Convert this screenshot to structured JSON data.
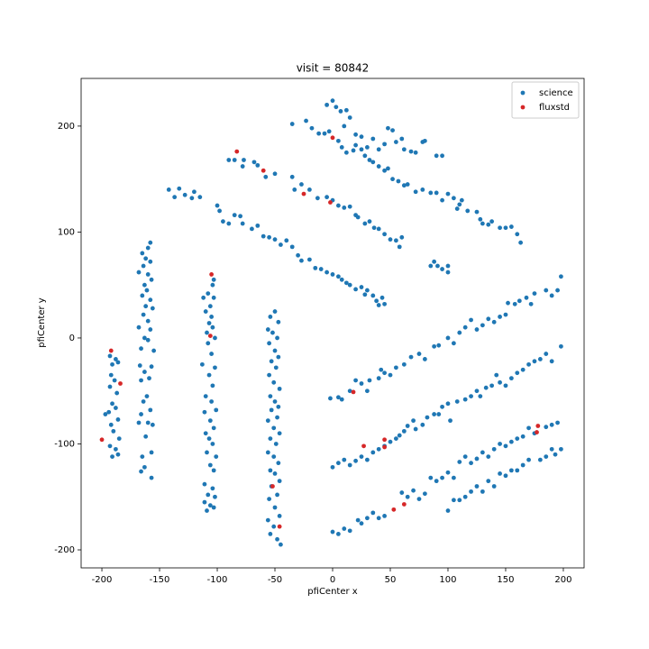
{
  "chart_data": {
    "type": "scatter",
    "title": "visit = 80842",
    "x_label": "pfiCenter x",
    "y_label": "pfiCenter y",
    "xlim": [
      -218,
      218
    ],
    "ylim": [
      -217,
      245
    ],
    "xticks": [
      -200,
      -150,
      -100,
      -50,
      0,
      50,
      100,
      150,
      200
    ],
    "yticks": [
      -200,
      -100,
      0,
      100,
      200
    ],
    "legend": "upper right",
    "grid": false,
    "series": [
      {
        "name": "science",
        "color": "#1f77b4",
        "x": [
          -193,
          -191,
          -188,
          -186,
          -192,
          -189,
          -193,
          -187,
          -191,
          -188,
          -194,
          -186,
          -192,
          -190,
          -185,
          -193,
          -188,
          -191,
          -186,
          -197,
          -158,
          -160,
          -165,
          -162,
          -158,
          -164,
          -160,
          -168,
          -157,
          -163,
          -161,
          -165,
          -158,
          -162,
          -156,
          -164,
          -160,
          -168,
          -158,
          -163,
          -160,
          -166,
          -155,
          -167,
          -157,
          -163,
          -159,
          -166,
          -161,
          -164,
          -158,
          -166,
          -160,
          -156,
          -168,
          -162,
          -157,
          -165,
          -163,
          -166,
          -157,
          -103,
          -104,
          -108,
          -103,
          -112,
          -106,
          -110,
          -105,
          -107,
          -104,
          -109,
          -102,
          -108,
          -113,
          -105,
          -102,
          -107,
          -104,
          -110,
          -105,
          -101,
          -111,
          -106,
          -103,
          -110,
          -107,
          -104,
          -109,
          -101,
          -106,
          -103,
          -111,
          -104,
          -108,
          -102,
          -111,
          -106,
          -109,
          -103,
          -50,
          -54,
          -47,
          -56,
          -52,
          -48,
          -55,
          -50,
          -47,
          -53,
          -49,
          -55,
          -51,
          -46,
          -54,
          -50,
          -47,
          -53,
          -48,
          -56,
          -51,
          -46,
          -54,
          -49,
          -56,
          -51,
          -47,
          -54,
          -50,
          -46,
          -53,
          -48,
          -55,
          -50,
          -46,
          -56,
          -51,
          -54,
          -48,
          -45,
          -142,
          -137,
          -133,
          -128,
          -122,
          -120,
          -115,
          -90,
          -85,
          -78,
          -77,
          -68,
          -65,
          -58,
          -50,
          -35,
          -33,
          -27,
          -20,
          -13,
          -5,
          0,
          5,
          10,
          15,
          20,
          22,
          28,
          32,
          36,
          40,
          45,
          50,
          55,
          58,
          60,
          -100,
          -98,
          -95,
          -90,
          -85,
          -80,
          -78,
          -70,
          -65,
          -60,
          -55,
          -50,
          -45,
          -40,
          -35,
          -30,
          -27,
          -20,
          -15,
          -10,
          -5,
          0,
          5,
          8,
          12,
          15,
          20,
          25,
          28,
          30,
          35,
          38,
          40,
          45,
          43,
          -35,
          -23,
          -18,
          -12,
          -7,
          -3,
          5,
          8,
          12,
          18,
          20,
          25,
          28,
          32,
          35,
          40,
          45,
          48,
          52,
          57,
          62,
          65,
          72,
          78,
          85,
          90,
          95,
          100,
          105,
          110,
          112,
          117,
          125,
          128,
          130,
          135,
          138,
          145,
          150,
          155,
          160,
          163,
          108,
          -5,
          0,
          3,
          7,
          12,
          10,
          15,
          20,
          25,
          30,
          35,
          40,
          45,
          48,
          52,
          55,
          60,
          62,
          68,
          72,
          78,
          80,
          90,
          95,
          85,
          88,
          91,
          95,
          100,
          100,
          -2,
          5,
          8,
          15,
          20,
          25,
          30,
          32,
          40,
          42,
          45,
          50,
          55,
          62,
          68,
          75,
          80,
          88,
          92,
          100,
          105,
          110,
          115,
          120,
          125,
          130,
          135,
          140,
          145,
          150,
          152,
          158,
          162,
          168,
          172,
          175,
          185,
          190,
          195,
          198,
          0,
          5,
          10,
          15,
          20,
          25,
          30,
          35,
          40,
          45,
          50,
          55,
          58,
          62,
          65,
          70,
          72,
          78,
          82,
          88,
          92,
          95,
          100,
          102,
          108,
          115,
          120,
          125,
          128,
          133,
          138,
          142,
          145,
          150,
          155,
          160,
          165,
          170,
          175,
          180,
          185,
          190,
          198,
          0,
          5,
          10,
          15,
          22,
          25,
          30,
          35,
          40,
          45,
          60,
          65,
          70,
          75,
          80,
          85,
          90,
          95,
          100,
          105,
          110,
          115,
          120,
          125,
          130,
          135,
          140,
          145,
          150,
          155,
          160,
          165,
          170,
          175,
          185,
          190,
          195,
          100,
          105,
          110,
          115,
          120,
          125,
          130,
          135,
          140,
          145,
          150,
          155,
          160,
          165,
          170,
          180,
          185,
          190,
          198,
          193
        ],
        "values": [
          -17,
          -25,
          -20,
          -23,
          -35,
          -40,
          -46,
          -52,
          -62,
          -66,
          -70,
          -77,
          -82,
          -88,
          -95,
          -102,
          -105,
          -112,
          -110,
          -72,
          90,
          85,
          80,
          75,
          72,
          68,
          60,
          62,
          55,
          50,
          45,
          40,
          36,
          30,
          28,
          22,
          16,
          10,
          8,
          0,
          -2,
          -10,
          -12,
          -26,
          -27,
          -32,
          -38,
          -40,
          -55,
          -60,
          -68,
          -72,
          -80,
          -82,
          -80,
          -93,
          -108,
          -112,
          -122,
          -126,
          -132,
          55,
          50,
          42,
          38,
          38,
          30,
          25,
          20,
          14,
          10,
          5,
          0,
          -5,
          -25,
          -15,
          -28,
          -35,
          -45,
          -55,
          -60,
          -68,
          -70,
          -78,
          -85,
          -90,
          -95,
          -100,
          -108,
          -112,
          -120,
          -125,
          -138,
          -142,
          -148,
          -150,
          -155,
          -158,
          -163,
          -160,
          25,
          20,
          15,
          8,
          5,
          0,
          -5,
          -12,
          -18,
          -22,
          -28,
          -35,
          -42,
          -48,
          -55,
          -60,
          -65,
          -68,
          -75,
          -78,
          -85,
          -90,
          -95,
          -100,
          -108,
          -112,
          -118,
          -125,
          -128,
          -135,
          -140,
          -148,
          -152,
          -160,
          -168,
          -172,
          -178,
          -185,
          -190,
          -195,
          140,
          133,
          141,
          135,
          132,
          138,
          133,
          168,
          168,
          162,
          168,
          166,
          163,
          152,
          155,
          152,
          140,
          145,
          140,
          132,
          133,
          130,
          125,
          123,
          124,
          116,
          114,
          108,
          110,
          104,
          103,
          98,
          93,
          92,
          86,
          95,
          125,
          120,
          110,
          108,
          116,
          115,
          108,
          103,
          106,
          96,
          95,
          93,
          88,
          92,
          86,
          78,
          73,
          74,
          66,
          65,
          62,
          60,
          58,
          55,
          52,
          50,
          46,
          48,
          41,
          45,
          40,
          35,
          31,
          32,
          38,
          202,
          205,
          198,
          193,
          193,
          195,
          186,
          180,
          175,
          177,
          182,
          178,
          172,
          168,
          166,
          162,
          158,
          160,
          150,
          148,
          144,
          145,
          138,
          140,
          137,
          137,
          130,
          136,
          132,
          126,
          130,
          120,
          119,
          112,
          108,
          107,
          110,
          104,
          104,
          105,
          98,
          90,
          122,
          220,
          224,
          218,
          214,
          215,
          200,
          208,
          192,
          190,
          180,
          188,
          178,
          183,
          198,
          196,
          185,
          188,
          178,
          176,
          175,
          185,
          186,
          172,
          172,
          68,
          72,
          68,
          65,
          62,
          68,
          -57,
          -56,
          -58,
          -50,
          -40,
          -43,
          -50,
          -40,
          -38,
          -30,
          -33,
          -35,
          -28,
          -25,
          -18,
          -15,
          -20,
          -8,
          -7,
          0,
          -5,
          5,
          10,
          17,
          8,
          12,
          18,
          15,
          20,
          22,
          33,
          32,
          35,
          38,
          32,
          42,
          45,
          40,
          45,
          58,
          -122,
          -118,
          -115,
          -120,
          -116,
          -112,
          -115,
          -108,
          -105,
          -102,
          -98,
          -95,
          -92,
          -88,
          -83,
          -78,
          -86,
          -82,
          -75,
          -72,
          -72,
          -65,
          -62,
          -78,
          -60,
          -58,
          -55,
          -50,
          -55,
          -47,
          -45,
          -35,
          -42,
          -45,
          -38,
          -33,
          -30,
          -25,
          -22,
          -20,
          -15,
          -22,
          -8,
          -183,
          -185,
          -180,
          -182,
          -172,
          -175,
          -170,
          -165,
          -170,
          -168,
          -146,
          -150,
          -144,
          -152,
          -147,
          -132,
          -135,
          -132,
          -127,
          -132,
          -117,
          -112,
          -118,
          -114,
          -108,
          -112,
          -105,
          -100,
          -102,
          -98,
          -95,
          -93,
          -85,
          -90,
          -84,
          -82,
          -80,
          -163,
          -153,
          -153,
          -150,
          -145,
          -140,
          -145,
          -135,
          -140,
          -128,
          -130,
          -125,
          -125,
          -120,
          -115,
          -115,
          -112,
          -105,
          -105,
          -110
        ]
      },
      {
        "name": "fluxstd",
        "color": "#d62728",
        "x": [
          -192,
          -184,
          -200,
          -83,
          -60,
          -25,
          0,
          -2,
          -105,
          -106,
          -52,
          -46,
          18,
          27,
          45,
          45,
          53,
          62,
          178,
          177
        ],
        "values": [
          -12,
          -43,
          -96,
          176,
          158,
          136,
          189,
          128,
          60,
          2,
          -140,
          -178,
          -51,
          -102,
          -96,
          -103,
          -162,
          -157,
          -83,
          -89
        ]
      }
    ]
  }
}
